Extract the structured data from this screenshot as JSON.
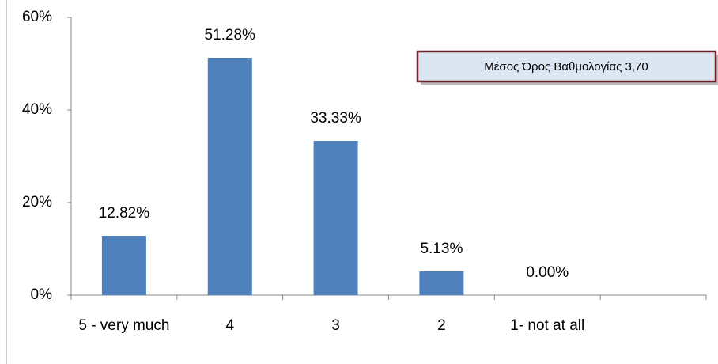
{
  "chart_data": {
    "type": "bar",
    "categories": [
      "5 - very much",
      "4",
      "3",
      "2",
      "1- not at all",
      null
    ],
    "values": [
      12.82,
      51.28,
      33.33,
      5.13,
      0.0,
      null
    ],
    "value_labels": [
      "12.82%",
      "51.28%",
      "33.33%",
      "5.13%",
      "0.00%",
      null
    ],
    "color": "#4f81bd",
    "ylim": [
      0,
      60
    ],
    "yticks": [
      {
        "value": 0,
        "label": "0%"
      },
      {
        "value": 20,
        "label": "20%"
      },
      {
        "value": 40,
        "label": "40%"
      },
      {
        "value": 60,
        "label": "60%"
      }
    ],
    "grid": false,
    "annotation": "Μέσος Όρος Βαθμολογίας 3,70"
  }
}
